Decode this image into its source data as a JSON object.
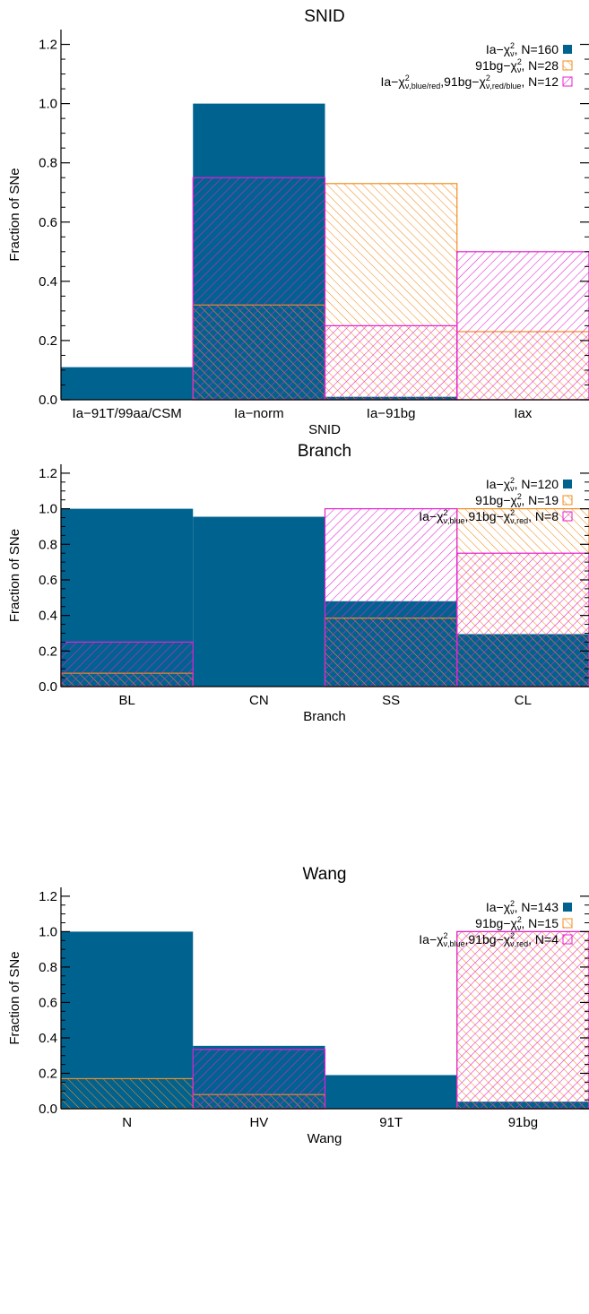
{
  "colors": {
    "ia": "#00628f",
    "bg91": "#f28c1e",
    "mix": "#e41fd6",
    "axis": "#000000"
  },
  "chart_data": [
    {
      "type": "bar",
      "title": "SNID",
      "xlabel": "SNID",
      "ylabel": "Fraction of SNe",
      "ylim": [
        0,
        1.25
      ],
      "yticks": [
        "0.0",
        "0.2",
        "0.4",
        "0.6",
        "0.8",
        "1.0",
        "1.2"
      ],
      "categories": [
        "Ia−91T/99aa/CSM",
        "Ia−norm",
        "Ia−91bg",
        "Iax"
      ],
      "legend_position": "top-right",
      "series": [
        {
          "key": "ia",
          "fill": "solid",
          "values": [
            0.11,
            1.0,
            0.01,
            0.0
          ],
          "legend": {
            "pre": "Ia−χ",
            "sup": "2",
            "sub": "ν",
            "mid": "",
            "sup2": "",
            "sub2": "",
            "post": ", N=160"
          }
        },
        {
          "key": "bg91",
          "fill": "hatch-right",
          "values": [
            0.0,
            0.32,
            0.73,
            0.23
          ],
          "legend": {
            "pre": "91bg−χ",
            "sup": "2",
            "sub": "ν",
            "mid": "",
            "sup2": "",
            "sub2": "",
            "post": ", N=28"
          }
        },
        {
          "key": "mix",
          "fill": "hatch-left",
          "values": [
            0.0,
            0.75,
            0.25,
            0.5
          ],
          "legend": {
            "pre": "Ia−χ",
            "sup": "2",
            "sub": "ν,blue/red",
            "mid": ",91bg−χ",
            "sup2": "2",
            "sub2": "ν,red/blue",
            "post": ", N=12"
          }
        }
      ]
    },
    {
      "type": "bar",
      "title": "Branch",
      "xlabel": "Branch",
      "ylabel": "Fraction of SNe",
      "ylim": [
        0,
        1.25
      ],
      "yticks": [
        "0.0",
        "0.2",
        "0.4",
        "0.6",
        "0.8",
        "1.0",
        "1.2"
      ],
      "categories": [
        "BL",
        "CN",
        "SS",
        "CL"
      ],
      "legend_position": "top-right",
      "series": [
        {
          "key": "ia",
          "fill": "solid",
          "values": [
            1.0,
            0.955,
            0.48,
            0.295
          ],
          "legend": {
            "pre": "Ia−χ",
            "sup": "2",
            "sub": "ν",
            "mid": "",
            "sup2": "",
            "sub2": "",
            "post": ", N=120"
          }
        },
        {
          "key": "bg91",
          "fill": "hatch-right",
          "values": [
            0.075,
            0.0,
            0.385,
            1.0
          ],
          "legend": {
            "pre": "91bg−χ",
            "sup": "2",
            "sub": "ν",
            "mid": "",
            "sup2": "",
            "sub2": "",
            "post": ", N=19"
          }
        },
        {
          "key": "mix",
          "fill": "hatch-left",
          "values": [
            0.25,
            0.0,
            1.0,
            0.75
          ],
          "legend": {
            "pre": "Ia−χ",
            "sup": "2",
            "sub": "ν,blue",
            "mid": ",91bg−χ",
            "sup2": "2",
            "sub2": "ν,red",
            "post": ", N=8"
          }
        }
      ]
    },
    {
      "type": "bar",
      "title": "Wang",
      "xlabel": "Wang",
      "ylabel": "Fraction of SNe",
      "ylim": [
        0,
        1.25
      ],
      "yticks": [
        "0.0",
        "0.2",
        "0.4",
        "0.6",
        "0.8",
        "1.0",
        "1.2"
      ],
      "categories": [
        "N",
        "HV",
        "91T",
        "91bg"
      ],
      "legend_position": "top-right",
      "series": [
        {
          "key": "ia",
          "fill": "solid",
          "values": [
            1.0,
            0.355,
            0.19,
            0.04
          ],
          "legend": {
            "pre": "Ia−χ",
            "sup": "2",
            "sub": "ν",
            "mid": "",
            "sup2": "",
            "sub2": "",
            "post": ", N=143"
          }
        },
        {
          "key": "bg91",
          "fill": "hatch-right",
          "values": [
            0.17,
            0.08,
            0.0,
            1.0
          ],
          "legend": {
            "pre": "91bg−χ",
            "sup": "2",
            "sub": "ν",
            "mid": "",
            "sup2": "",
            "sub2": "",
            "post": ", N=15"
          }
        },
        {
          "key": "mix",
          "fill": "hatch-left",
          "values": [
            0.0,
            0.335,
            0.0,
            1.0
          ],
          "legend": {
            "pre": "Ia−χ",
            "sup": "2",
            "sub": "ν,blue",
            "mid": ",91bg−χ",
            "sup2": "2",
            "sub2": "ν,red",
            "post": ", N=4"
          }
        }
      ]
    }
  ]
}
